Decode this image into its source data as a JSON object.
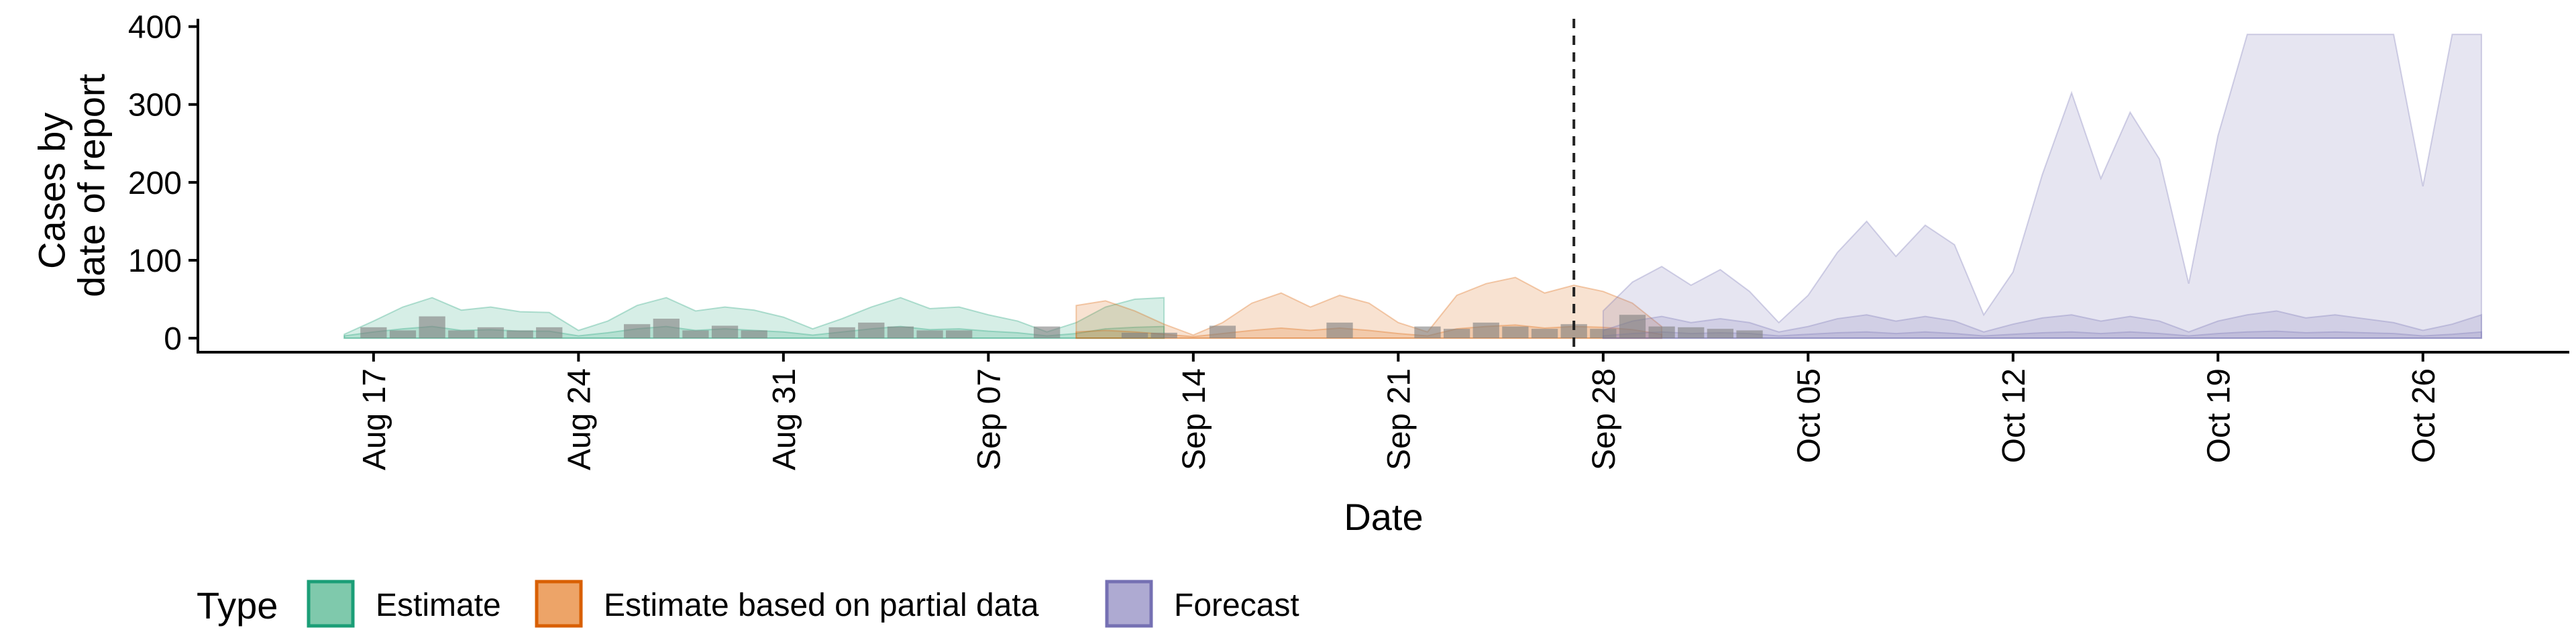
{
  "chart_data": {
    "type": "area",
    "title": "",
    "xlabel": "Date",
    "ylabel": [
      "Cases by",
      "date of report"
    ],
    "ylim": [
      -18,
      410
    ],
    "yticks": [
      0,
      100,
      200,
      300,
      400
    ],
    "xlim": [
      "2020-08-11",
      "2020-10-31"
    ],
    "xticks": [
      {
        "date": "2020-08-17",
        "label": "Aug 17"
      },
      {
        "date": "2020-08-24",
        "label": "Aug 24"
      },
      {
        "date": "2020-08-31",
        "label": "Aug 31"
      },
      {
        "date": "2020-09-07",
        "label": "Sep 07"
      },
      {
        "date": "2020-09-14",
        "label": "Sep 14"
      },
      {
        "date": "2020-09-21",
        "label": "Sep 21"
      },
      {
        "date": "2020-09-28",
        "label": "Sep 28"
      },
      {
        "date": "2020-10-05",
        "label": "Oct 05"
      },
      {
        "date": "2020-10-12",
        "label": "Oct 12"
      },
      {
        "date": "2020-10-19",
        "label": "Oct 19"
      },
      {
        "date": "2020-10-26",
        "label": "Oct 26"
      }
    ],
    "vline": {
      "date": "2020-09-27",
      "style": "dashed"
    },
    "grid": false,
    "legend": {
      "position": "bottom",
      "title": "Type",
      "entries": [
        {
          "label": "Estimate",
          "fill": "#7fc9ac",
          "stroke": "#1b9e77"
        },
        {
          "label": "Estimate based on partial data",
          "fill": "#eda468",
          "stroke": "#d95f02"
        },
        {
          "label": "Forecast",
          "fill": "#aeaad2",
          "stroke": "#7570b3"
        }
      ]
    },
    "series": [
      {
        "type_index": 0,
        "color": "#1b9e77",
        "start": "2020-08-16",
        "outer_upper": [
          5,
          22,
          40,
          52,
          36,
          40,
          34,
          33,
          10,
          22,
          42,
          52,
          35,
          40,
          36,
          27,
          12,
          25,
          40,
          52,
          38,
          40,
          30,
          22,
          8,
          20,
          40,
          50,
          52
        ],
        "inner_upper": [
          3,
          8,
          12,
          15,
          10,
          11,
          9,
          9,
          3,
          7,
          12,
          15,
          10,
          12,
          10,
          8,
          4,
          8,
          12,
          15,
          11,
          12,
          9,
          7,
          3,
          6,
          12,
          14,
          15
        ]
      },
      {
        "type_index": 1,
        "color": "#d95f02",
        "start": "2020-09-10",
        "outer_upper": [
          42,
          48,
          35,
          18,
          4,
          20,
          45,
          58,
          40,
          55,
          45,
          20,
          8,
          55,
          70,
          78,
          58,
          68,
          60,
          45,
          15
        ],
        "inner_upper": [
          8,
          10,
          8,
          5,
          2,
          6,
          10,
          13,
          10,
          13,
          10,
          6,
          3,
          12,
          15,
          17,
          13,
          15,
          14,
          11,
          5
        ]
      },
      {
        "type_index": 2,
        "color": "#7570b3",
        "start": "2020-09-28",
        "outer_upper": [
          35,
          72,
          92,
          68,
          88,
          60,
          20,
          55,
          110,
          150,
          105,
          145,
          120,
          30,
          85,
          210,
          315,
          205,
          290,
          230,
          70,
          260,
          390,
          390,
          390,
          390,
          390,
          390,
          195,
          390,
          390
        ],
        "inner_upper": [
          10,
          22,
          28,
          20,
          25,
          20,
          8,
          15,
          25,
          30,
          22,
          28,
          22,
          8,
          18,
          26,
          30,
          22,
          28,
          22,
          8,
          22,
          30,
          35,
          26,
          30,
          25,
          20,
          10,
          18,
          30
        ],
        "inner_mid": [
          3,
          6,
          8,
          6,
          7,
          6,
          3,
          5,
          7,
          8,
          6,
          8,
          6,
          3,
          5,
          7,
          8,
          6,
          8,
          6,
          3,
          6,
          8,
          9,
          7,
          8,
          7,
          6,
          3,
          5,
          8
        ]
      }
    ],
    "reported_cases": {
      "color": "#7f7f7f",
      "start": "2020-08-16",
      "values": [
        0,
        14,
        10,
        28,
        10,
        14,
        10,
        14,
        0,
        0,
        18,
        25,
        10,
        16,
        10,
        0,
        0,
        14,
        20,
        15,
        10,
        10,
        0,
        0,
        15,
        0,
        0,
        7,
        7,
        0,
        16,
        0,
        0,
        0,
        20,
        0,
        0,
        15,
        12,
        20,
        15,
        12,
        18,
        12,
        30,
        15,
        14,
        12,
        10
      ]
    }
  }
}
